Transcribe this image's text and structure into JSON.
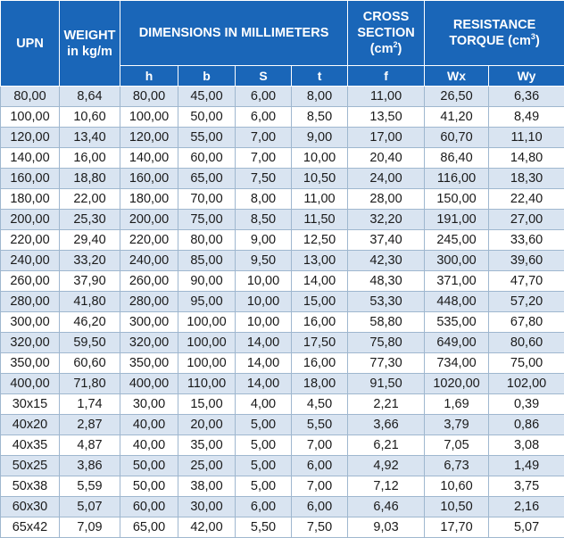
{
  "header": {
    "upn": "UPN",
    "weight_line1": "WEIGHT",
    "weight_line2": "in kg/m",
    "dimensions": "DIMENSIONS IN MILLIMETERS",
    "cross_line1": "CROSS",
    "cross_line2": "SECTION",
    "cross_unit_base": "(cm",
    "cross_unit_exp": "2",
    "cross_unit_close": ")",
    "resistance_line1": "RESISTANCE",
    "resistance_base": "TORQUE (cm",
    "resistance_exp": "3",
    "resistance_close": ")",
    "sub": [
      "h",
      "b",
      "S",
      "t",
      "f",
      "Wx",
      "Wy"
    ]
  },
  "rows": [
    [
      "80,00",
      "8,64",
      "80,00",
      "45,00",
      "6,00",
      "8,00",
      "11,00",
      "26,50",
      "6,36"
    ],
    [
      "100,00",
      "10,60",
      "100,00",
      "50,00",
      "6,00",
      "8,50",
      "13,50",
      "41,20",
      "8,49"
    ],
    [
      "120,00",
      "13,40",
      "120,00",
      "55,00",
      "7,00",
      "9,00",
      "17,00",
      "60,70",
      "11,10"
    ],
    [
      "140,00",
      "16,00",
      "140,00",
      "60,00",
      "7,00",
      "10,00",
      "20,40",
      "86,40",
      "14,80"
    ],
    [
      "160,00",
      "18,80",
      "160,00",
      "65,00",
      "7,50",
      "10,50",
      "24,00",
      "116,00",
      "18,30"
    ],
    [
      "180,00",
      "22,00",
      "180,00",
      "70,00",
      "8,00",
      "11,00",
      "28,00",
      "150,00",
      "22,40"
    ],
    [
      "200,00",
      "25,30",
      "200,00",
      "75,00",
      "8,50",
      "11,50",
      "32,20",
      "191,00",
      "27,00"
    ],
    [
      "220,00",
      "29,40",
      "220,00",
      "80,00",
      "9,00",
      "12,50",
      "37,40",
      "245,00",
      "33,60"
    ],
    [
      "240,00",
      "33,20",
      "240,00",
      "85,00",
      "9,50",
      "13,00",
      "42,30",
      "300,00",
      "39,60"
    ],
    [
      "260,00",
      "37,90",
      "260,00",
      "90,00",
      "10,00",
      "14,00",
      "48,30",
      "371,00",
      "47,70"
    ],
    [
      "280,00",
      "41,80",
      "280,00",
      "95,00",
      "10,00",
      "15,00",
      "53,30",
      "448,00",
      "57,20"
    ],
    [
      "300,00",
      "46,20",
      "300,00",
      "100,00",
      "10,00",
      "16,00",
      "58,80",
      "535,00",
      "67,80"
    ],
    [
      "320,00",
      "59,50",
      "320,00",
      "100,00",
      "14,00",
      "17,50",
      "75,80",
      "649,00",
      "80,60"
    ],
    [
      "350,00",
      "60,60",
      "350,00",
      "100,00",
      "14,00",
      "16,00",
      "77,30",
      "734,00",
      "75,00"
    ],
    [
      "400,00",
      "71,80",
      "400,00",
      "110,00",
      "14,00",
      "18,00",
      "91,50",
      "1020,00",
      "102,00"
    ],
    [
      "30x15",
      "1,74",
      "30,00",
      "15,00",
      "4,00",
      "4,50",
      "2,21",
      "1,69",
      "0,39"
    ],
    [
      "40x20",
      "2,87",
      "40,00",
      "20,00",
      "5,00",
      "5,50",
      "3,66",
      "3,79",
      "0,86"
    ],
    [
      "40x35",
      "4,87",
      "40,00",
      "35,00",
      "5,00",
      "7,00",
      "6,21",
      "7,05",
      "3,08"
    ],
    [
      "50x25",
      "3,86",
      "50,00",
      "25,00",
      "5,00",
      "6,00",
      "4,92",
      "6,73",
      "1,49"
    ],
    [
      "50x38",
      "5,59",
      "50,00",
      "38,00",
      "5,00",
      "7,00",
      "7,12",
      "10,60",
      "3,75"
    ],
    [
      "60x30",
      "5,07",
      "60,00",
      "30,00",
      "6,00",
      "6,00",
      "6,46",
      "10,50",
      "2,16"
    ],
    [
      "65x42",
      "7,09",
      "65,00",
      "42,00",
      "5,50",
      "7,50",
      "9,03",
      "17,70",
      "5,07"
    ]
  ]
}
